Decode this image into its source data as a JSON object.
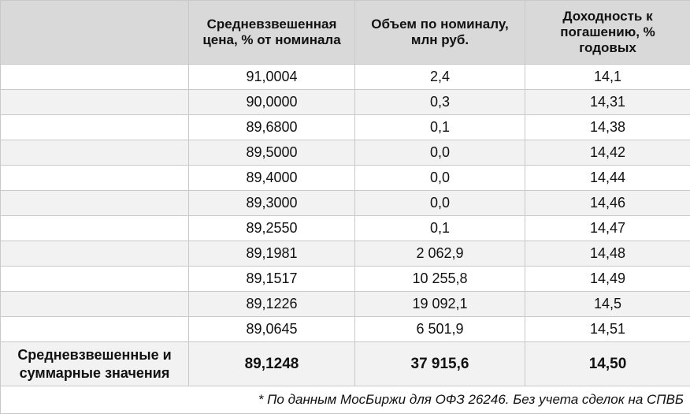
{
  "headers": {
    "col1": "",
    "col2": "Средневзвешенная цена, % от номинала",
    "col3": "Объем по номиналу, млн руб.",
    "col4": "Доходность к погашению, % годовых"
  },
  "rows": [
    {
      "label": "",
      "price": "91,0004",
      "volume": "2,4",
      "yield": "14,1"
    },
    {
      "label": "",
      "price": "90,0000",
      "volume": "0,3",
      "yield": "14,31"
    },
    {
      "label": "",
      "price": "89,6800",
      "volume": "0,1",
      "yield": "14,38"
    },
    {
      "label": "",
      "price": "89,5000",
      "volume": "0,0",
      "yield": "14,42"
    },
    {
      "label": "",
      "price": "89,4000",
      "volume": "0,0",
      "yield": "14,44"
    },
    {
      "label": "",
      "price": "89,3000",
      "volume": "0,0",
      "yield": "14,46"
    },
    {
      "label": "",
      "price": "89,2550",
      "volume": "0,1",
      "yield": "14,47"
    },
    {
      "label": "",
      "price": "89,1981",
      "volume": "2 062,9",
      "yield": "14,48"
    },
    {
      "label": "",
      "price": "89,1517",
      "volume": "10 255,8",
      "yield": "14,49"
    },
    {
      "label": "",
      "price": "89,1226",
      "volume": "19 092,1",
      "yield": "14,5"
    },
    {
      "label": "",
      "price": "89,0645",
      "volume": "6 501,9",
      "yield": "14,51"
    }
  ],
  "total": {
    "label": "Средневзвешенные и суммарные значения",
    "price": "89,1248",
    "volume": "37 915,6",
    "yield": "14,50"
  },
  "footnote": "* По данным МосБиржи для ОФЗ 26246. Без учета сделок на СПВБ"
}
